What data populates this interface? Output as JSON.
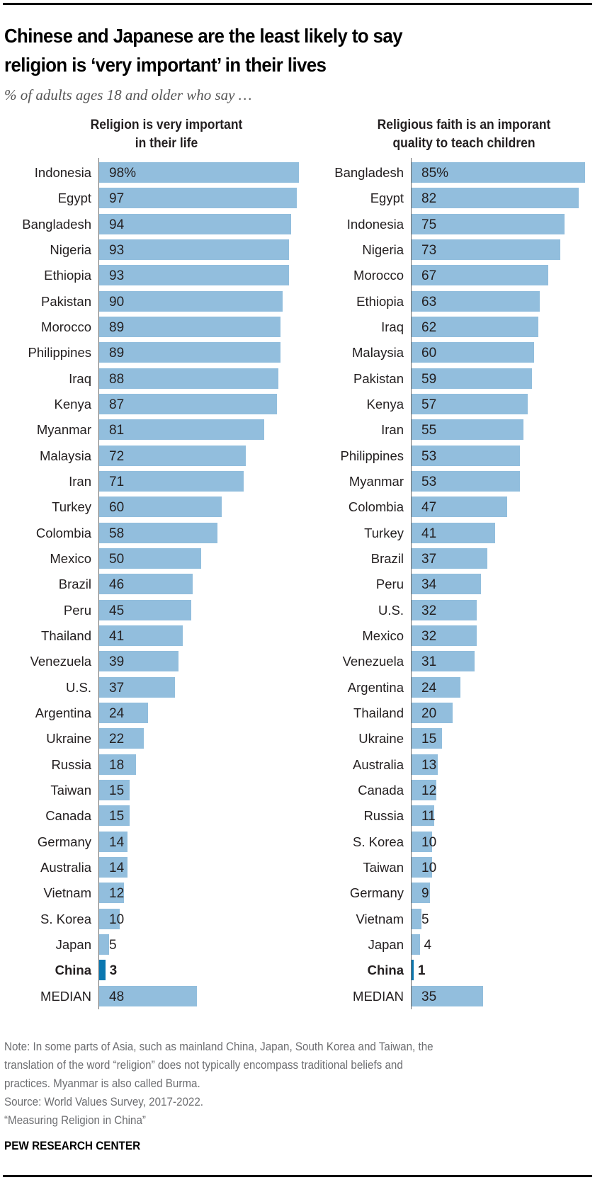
{
  "title": "Chinese and Japanese are the least likely to say religion is ‘very important’ in their lives",
  "title_lines": [
    "Chinese and Japanese are the least likely to say",
    "religion is ‘very important’ in their lives"
  ],
  "subtitle": "% of adults ages 18 and older who say …",
  "colors": {
    "bar": "#92bedd",
    "highlight": "#0a77b0",
    "text": "#231f20",
    "note": "#6d6e71"
  },
  "chart_data": [
    {
      "type": "bar",
      "orientation": "horizontal",
      "title": "Religion is very important in their life",
      "title_lines": [
        "Religion is very important",
        "in their life"
      ],
      "xlabel": "",
      "ylabel": "",
      "xlim": [
        0,
        100
      ],
      "grid": false,
      "unit": "%",
      "categories": [
        "Indonesia",
        "Egypt",
        "Bangladesh",
        "Nigeria",
        "Ethiopia",
        "Pakistan",
        "Morocco",
        "Philippines",
        "Iraq",
        "Kenya",
        "Myanmar",
        "Malaysia",
        "Iran",
        "Turkey",
        "Colombia",
        "Mexico",
        "Brazil",
        "Peru",
        "Thailand",
        "Venezuela",
        "U.S.",
        "Argentina",
        "Ukraine",
        "Russia",
        "Taiwan",
        "Canada",
        "Germany",
        "Australia",
        "Vietnam",
        "S. Korea",
        "Japan",
        "China",
        "MEDIAN"
      ],
      "values": [
        98,
        97,
        94,
        93,
        93,
        90,
        89,
        89,
        88,
        87,
        81,
        72,
        71,
        60,
        58,
        50,
        46,
        45,
        41,
        39,
        37,
        24,
        22,
        18,
        15,
        15,
        14,
        14,
        12,
        10,
        5,
        3,
        48
      ],
      "labels": [
        "98%",
        "97",
        "94",
        "93",
        "93",
        "90",
        "89",
        "89",
        "88",
        "87",
        "81",
        "72",
        "71",
        "60",
        "58",
        "50",
        "46",
        "45",
        "41",
        "39",
        "37",
        "24",
        "22",
        "18",
        "15",
        "15",
        "14",
        "14",
        "12",
        "10",
        "5",
        "3",
        "48"
      ],
      "highlight": [
        "China"
      ]
    },
    {
      "type": "bar",
      "orientation": "horizontal",
      "title": "Religious faith is an imporant quality to teach children",
      "title_lines": [
        "Religious faith is an imporant",
        "quality to teach children"
      ],
      "xlabel": "",
      "ylabel": "",
      "xlim": [
        0,
        100
      ],
      "grid": false,
      "unit": "%",
      "categories": [
        "Bangladesh",
        "Egypt",
        "Indonesia",
        "Nigeria",
        "Morocco",
        "Ethiopia",
        "Iraq",
        "Malaysia",
        "Pakistan",
        "Kenya",
        "Iran",
        "Philippines",
        "Myanmar",
        "Colombia",
        "Turkey",
        "Brazil",
        "Peru",
        "U.S.",
        "Mexico",
        "Venezuela",
        "Argentina",
        "Thailand",
        "Ukraine",
        "Australia",
        "Canada",
        "Russia",
        "S. Korea",
        "Taiwan",
        "Germany",
        "Vietnam",
        "Japan",
        "China",
        "MEDIAN"
      ],
      "values": [
        85,
        82,
        75,
        73,
        67,
        63,
        62,
        60,
        59,
        57,
        55,
        53,
        53,
        47,
        41,
        37,
        34,
        32,
        32,
        31,
        24,
        20,
        15,
        13,
        12,
        11,
        10,
        10,
        9,
        5,
        4,
        1,
        35
      ],
      "labels": [
        "85%",
        "82",
        "75",
        "73",
        "67",
        "63",
        "62",
        "60",
        "59",
        "57",
        "55",
        "53",
        "53",
        "47",
        "41",
        "37",
        "34",
        "32",
        "32",
        "31",
        "24",
        "20",
        "15",
        "13",
        "12",
        "11",
        "10",
        "10",
        "9",
        "5",
        "4",
        "1",
        "35"
      ],
      "highlight": [
        "China"
      ]
    }
  ],
  "notes": [
    "Note: In some parts of Asia, such as mainland China, Japan, South Korea and Taiwan, the",
    "translation of the word “religion” does not typically encompass traditional beliefs and",
    "practices. Myanmar is also called Burma.",
    "Source: World Values Survey, 2017-2022.",
    "“Measuring Religion in China”"
  ],
  "brand": "PEW RESEARCH CENTER"
}
